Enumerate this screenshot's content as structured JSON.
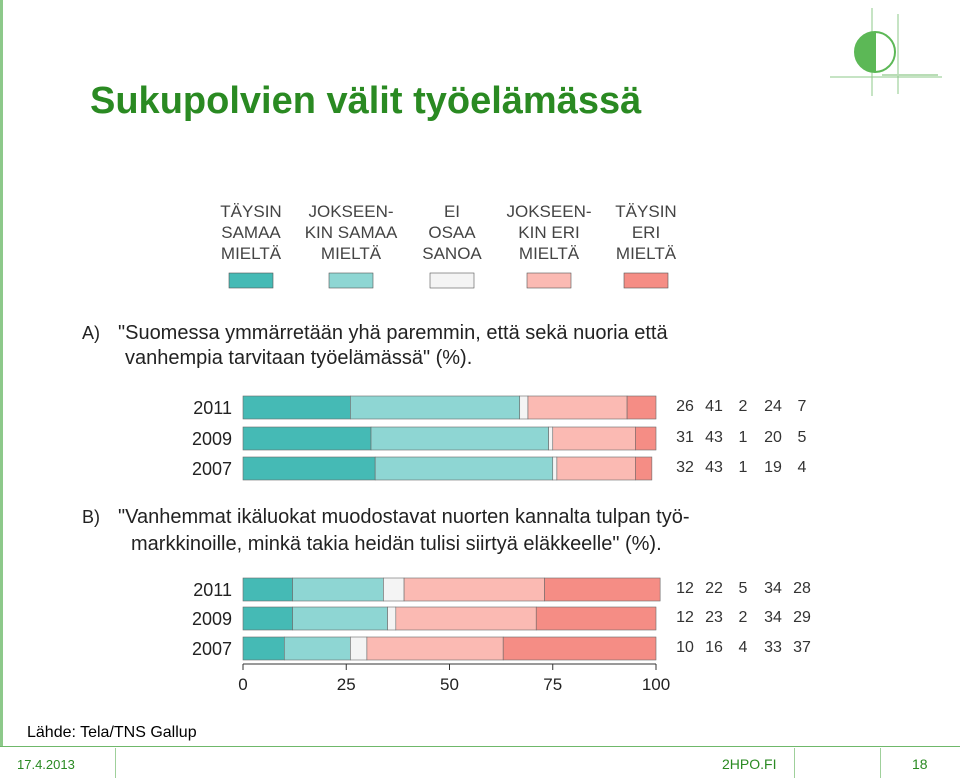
{
  "slide": {
    "title": "Sukupolvien välit työelämässä",
    "source": "Lähde: Tela/TNS Gallup",
    "date": "17.4.2013",
    "site": "2HPO.FI",
    "page_number": "18"
  },
  "colors": {
    "title": "#2a8a22",
    "accent_green": "#6fb86a",
    "series": [
      "#45bab5",
      "#8ed6d3",
      "#f4f4f4",
      "#fbbab3",
      "#f58d85"
    ]
  },
  "icons": {
    "logo": "circle-logo-icon"
  },
  "chart_data": {
    "type": "bar",
    "orientation": "horizontal",
    "stacked": true,
    "xlim": [
      0,
      100
    ],
    "xticks": [
      0,
      25,
      50,
      75,
      100
    ],
    "legend_position": "top",
    "grid": false,
    "legend": [
      [
        "TÄYSIN",
        "SAMAA",
        "MIELTÄ"
      ],
      [
        "JOKSEEN-",
        "KIN SAMAA",
        "MIELTÄ"
      ],
      [
        "EI",
        "OSAA",
        "SANOA"
      ],
      [
        "JOKSEEN-",
        "KIN ERI",
        "MIELTÄ"
      ],
      [
        "TÄYSIN",
        "ERI",
        "MIELTÄ"
      ]
    ],
    "panels": [
      {
        "label": "A)",
        "question": [
          "\"Suomessa ymmärretään yhä paremmin, että sekä nuoria että",
          "vanhempia tarvitaan työelämässä\" (%)."
        ],
        "categories": [
          "2011",
          "2009",
          "2007"
        ],
        "values": [
          [
            26,
            41,
            2,
            24,
            7
          ],
          [
            31,
            43,
            1,
            20,
            5
          ],
          [
            32,
            43,
            1,
            19,
            4
          ]
        ]
      },
      {
        "label": "B)",
        "question": [
          "\"Vanhemmat ikäluokat muodostavat nuorten kannalta tulpan työ-",
          "markkinoille, minkä takia heidän tulisi siirtyä eläkkeelle\" (%)."
        ],
        "categories": [
          "2011",
          "2009",
          "2007"
        ],
        "values": [
          [
            12,
            22,
            5,
            34,
            28
          ],
          [
            12,
            23,
            2,
            34,
            29
          ],
          [
            10,
            16,
            4,
            33,
            37
          ]
        ]
      }
    ]
  }
}
